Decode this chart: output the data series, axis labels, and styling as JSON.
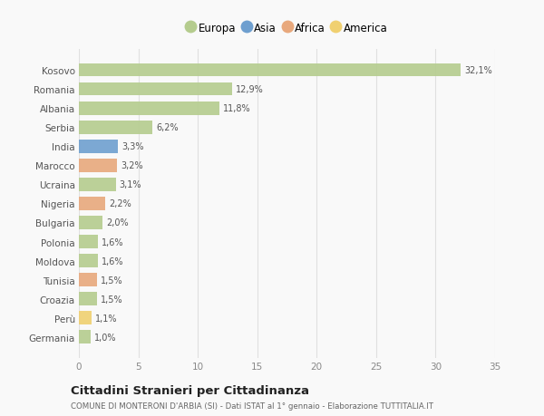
{
  "categories": [
    "Kosovo",
    "Romania",
    "Albania",
    "Serbia",
    "India",
    "Marocco",
    "Ucraina",
    "Nigeria",
    "Bulgaria",
    "Polonia",
    "Moldova",
    "Tunisia",
    "Croazia",
    "Perù",
    "Germania"
  ],
  "values": [
    32.1,
    12.9,
    11.8,
    6.2,
    3.3,
    3.2,
    3.1,
    2.2,
    2.0,
    1.6,
    1.6,
    1.5,
    1.5,
    1.1,
    1.0
  ],
  "labels": [
    "32,1%",
    "12,9%",
    "11,8%",
    "6,2%",
    "3,3%",
    "3,2%",
    "3,1%",
    "2,2%",
    "2,0%",
    "1,6%",
    "1,6%",
    "1,5%",
    "1,5%",
    "1,1%",
    "1,0%"
  ],
  "continents": [
    "Europa",
    "Europa",
    "Europa",
    "Europa",
    "Asia",
    "Africa",
    "Europa",
    "Africa",
    "Europa",
    "Europa",
    "Europa",
    "Africa",
    "Europa",
    "America",
    "Europa"
  ],
  "colors": {
    "Europa": "#b5cc8e",
    "Asia": "#6e9fcf",
    "Africa": "#e8a87c",
    "America": "#f0d070"
  },
  "legend_entries": [
    "Europa",
    "Asia",
    "Africa",
    "America"
  ],
  "xlim": [
    0,
    35
  ],
  "xticks": [
    0,
    5,
    10,
    15,
    20,
    25,
    30,
    35
  ],
  "title": "Cittadini Stranieri per Cittadinanza",
  "subtitle": "COMUNE DI MONTERONI D'ARBIA (SI) - Dati ISTAT al 1° gennaio - Elaborazione TUTTITALIA.IT",
  "bg_color": "#f9f9f9",
  "grid_color": "#e0e0e0",
  "bar_height": 0.7
}
